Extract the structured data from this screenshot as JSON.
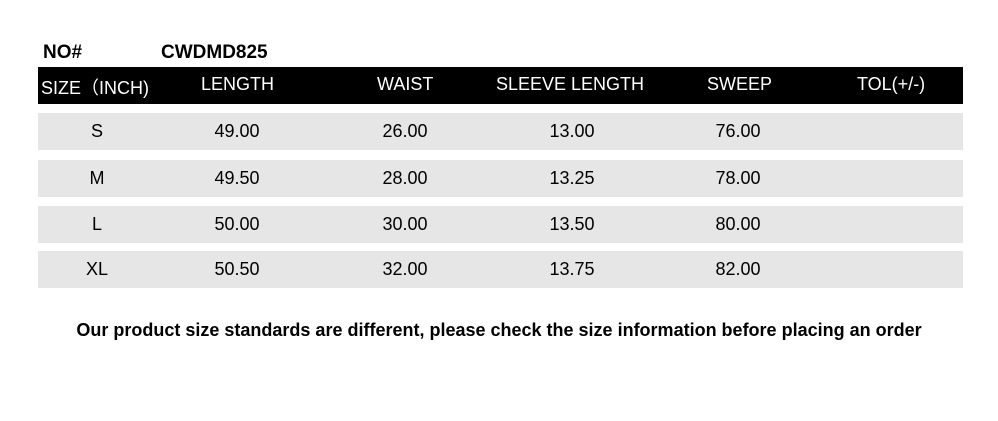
{
  "no_label": "NO#",
  "style_no": "CWDMD825",
  "headers": [
    "SIZE（INCH)",
    "LENGTH",
    "WAIST",
    "SLEEVE LENGTH",
    "SWEEP",
    "TOL(+/-)"
  ],
  "rows": [
    [
      "S",
      "49.00",
      "26.00",
      "13.00",
      "76.00",
      ""
    ],
    [
      "M",
      "49.50",
      "28.00",
      "13.25",
      "78.00",
      ""
    ],
    [
      "L",
      "50.00",
      "30.00",
      "13.50",
      "80.00",
      ""
    ],
    [
      "XL",
      "50.50",
      "32.00",
      "13.75",
      "82.00",
      ""
    ]
  ],
  "note": "Our product size standards are different, please check the size information before placing an order"
}
